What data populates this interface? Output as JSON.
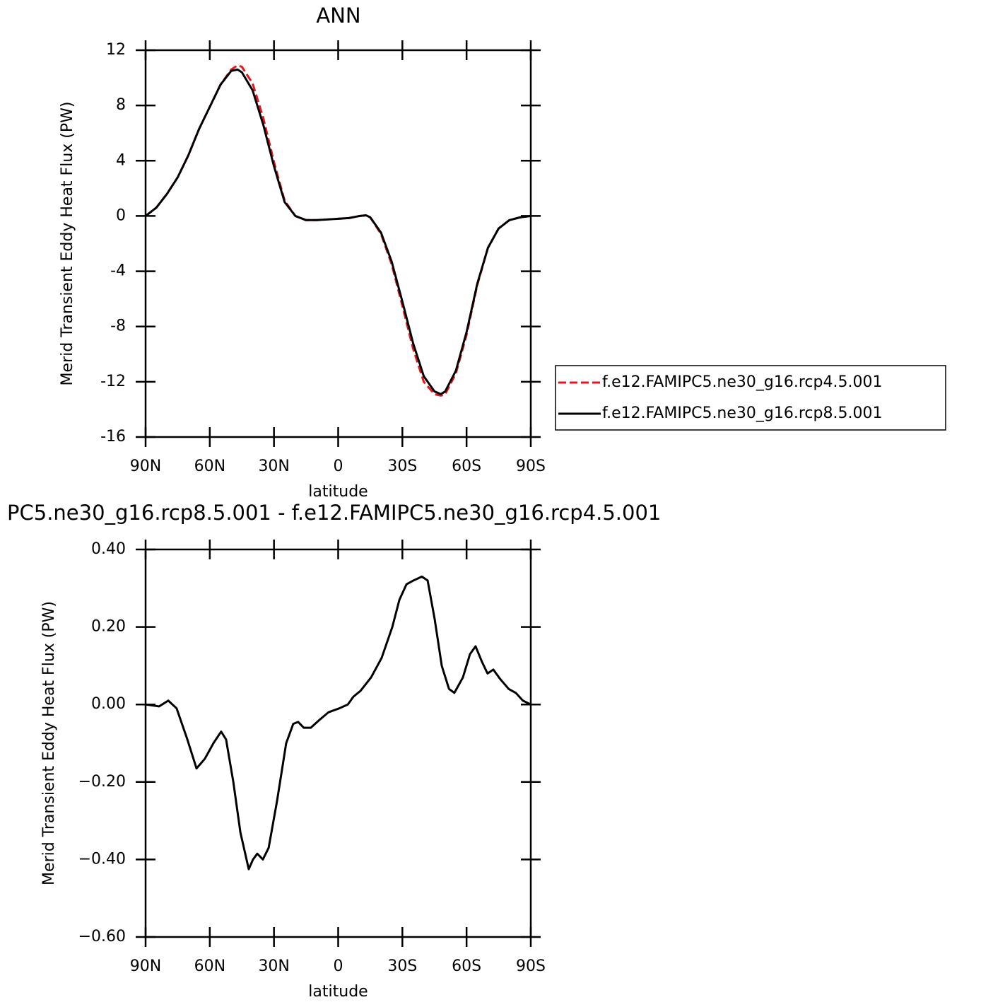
{
  "chart_data": [
    {
      "type": "line",
      "title": "ANN",
      "x_label": "latitude",
      "y_label": "Merid Transient Eddy Heat Flux (PW)",
      "x": [
        90,
        85,
        80,
        75,
        70,
        65,
        60,
        55,
        50,
        47,
        45,
        40,
        35,
        30,
        25,
        20,
        15,
        10,
        5,
        0,
        -5,
        -10,
        -13,
        -15,
        -20,
        -25,
        -30,
        -35,
        -40,
        -45,
        -48,
        -50,
        -55,
        -60,
        -65,
        -70,
        -75,
        -80,
        -85,
        -90
      ],
      "series": [
        {
          "name": "f.e12.FAMIPC5.ne30_g16.rcp4.5.001",
          "color": "#e8161b",
          "linestyle": "dashed",
          "values": [
            0,
            0.6,
            1.6,
            2.8,
            4.4,
            6.3,
            7.9,
            9.5,
            10.6,
            10.9,
            10.8,
            9.6,
            7.1,
            3.9,
            1.1,
            0.0,
            -0.3,
            -0.3,
            -0.25,
            -0.2,
            -0.15,
            0,
            0.05,
            -0.1,
            -1.3,
            -3.5,
            -6.5,
            -9.6,
            -12.0,
            -12.9,
            -13.0,
            -12.9,
            -11.4,
            -8.6,
            -5.0,
            -2.3,
            -0.9,
            -0.3,
            -0.1,
            0
          ]
        },
        {
          "name": "f.e12.FAMIPC5.ne30_g16.rcp8.5.001",
          "color": "#000000",
          "linestyle": "solid",
          "values": [
            0,
            0.6,
            1.6,
            2.8,
            4.4,
            6.3,
            7.9,
            9.5,
            10.5,
            10.6,
            10.4,
            9.1,
            6.6,
            3.6,
            1.0,
            0.0,
            -0.3,
            -0.3,
            -0.25,
            -0.2,
            -0.15,
            0,
            0.05,
            -0.1,
            -1.2,
            -3.3,
            -6.2,
            -9.2,
            -11.6,
            -12.7,
            -12.9,
            -12.7,
            -11.2,
            -8.4,
            -4.9,
            -2.3,
            -0.9,
            -0.3,
            -0.1,
            0
          ]
        }
      ],
      "xlim": [
        90,
        -90
      ],
      "xticks": [
        {
          "value": 90,
          "label": "90N"
        },
        {
          "value": 60,
          "label": "60N"
        },
        {
          "value": 30,
          "label": "30N"
        },
        0,
        {
          "value": -30,
          "label": "30S"
        },
        {
          "value": -60,
          "label": "60S"
        },
        {
          "value": -90,
          "label": "90S"
        }
      ],
      "ylim": [
        -16,
        12
      ],
      "yticks": [
        -16,
        -12,
        -8,
        -4,
        0,
        4,
        8,
        12
      ],
      "legend": "right"
    },
    {
      "type": "line",
      "title": "PC5.ne30_g16.rcp8.5.001 - f.e12.FAMIPC5.ne30_g16.rcp4.5.001",
      "x_label": "latitude",
      "y_label": "Merid Transient Eddy Heat Flux (PW)",
      "x": [
        90,
        83.7,
        79.4,
        75.5,
        70.5,
        66.2,
        62.3,
        58.3,
        54.7,
        52.4,
        49.0,
        45.7,
        41.8,
        39.8,
        37.8,
        35.2,
        32.5,
        28.6,
        24.3,
        21.0,
        18.7,
        16.1,
        12.8,
        8.8,
        4.5,
        -0.5,
        -4.5,
        -7.1,
        -10.4,
        -15.4,
        -20.3,
        -25.3,
        -28.6,
        -31.9,
        -35.2,
        -39.1,
        -41.8,
        -45.1,
        -48.4,
        -51.8,
        -54.3,
        -58.3,
        -61.6,
        -64.2,
        -67.2,
        -69.8,
        -72.5,
        -75.8,
        -79.7,
        -83.0,
        -86.3,
        -90
      ],
      "series": [
        {
          "color": "#000000",
          "linestyle": "solid",
          "values": [
            0,
            -0.005,
            0.01,
            -0.01,
            -0.09,
            -0.165,
            -0.14,
            -0.1,
            -0.07,
            -0.09,
            -0.2,
            -0.33,
            -0.425,
            -0.4,
            -0.385,
            -0.4,
            -0.37,
            -0.25,
            -0.1,
            -0.05,
            -0.045,
            -0.06,
            -0.06,
            -0.04,
            -0.02,
            -0.01,
            0.0,
            0.02,
            0.035,
            0.07,
            0.12,
            0.2,
            0.27,
            0.31,
            0.32,
            0.33,
            0.32,
            0.22,
            0.1,
            0.04,
            0.03,
            0.07,
            0.13,
            0.15,
            0.11,
            0.08,
            0.09,
            0.065,
            0.04,
            0.03,
            0.01,
            0
          ]
        }
      ],
      "xlim": [
        90,
        -90
      ],
      "xticks": [
        {
          "value": 90,
          "label": "90N"
        },
        {
          "value": 60,
          "label": "60N"
        },
        {
          "value": 30,
          "label": "30N"
        },
        0,
        {
          "value": -30,
          "label": "30S"
        },
        {
          "value": -60,
          "label": "60S"
        },
        {
          "value": -90,
          "label": "90S"
        }
      ],
      "ylim": [
        -0.6,
        0.4
      ],
      "yticks": [
        {
          "value": -0.6,
          "label": "−0.60"
        },
        {
          "value": -0.4,
          "label": "−0.40"
        },
        {
          "value": -0.2,
          "label": "−0.20"
        },
        {
          "value": 0,
          "label": "0.00"
        },
        {
          "value": 0.2,
          "label": "0.20"
        },
        {
          "value": 0.4,
          "label": "0.40"
        }
      ]
    }
  ]
}
